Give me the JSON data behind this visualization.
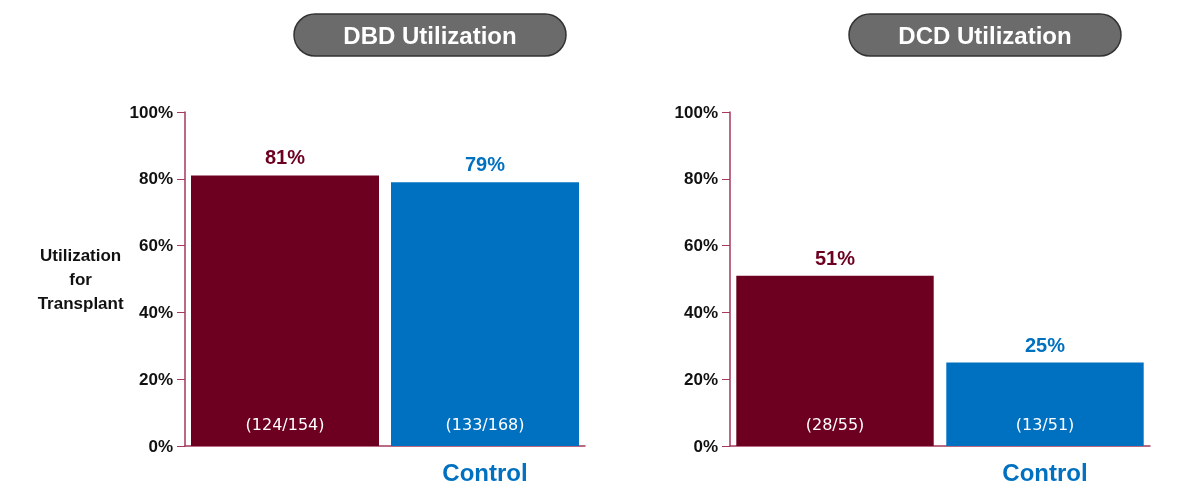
{
  "chart_data": [
    {
      "type": "bar",
      "title": "DBD Utilization",
      "ylabel": "Utilization for Transplant",
      "categories": [
        null,
        "Control"
      ],
      "values": [
        81,
        79
      ],
      "colors": [
        "#6d0020",
        "#0070c0"
      ],
      "value_labels": [
        "81%",
        "79%"
      ],
      "ylim": [
        0,
        100
      ],
      "yticks": [
        {
          "value": 0,
          "label": "0%"
        },
        {
          "value": 20,
          "label": "20%"
        },
        {
          "value": 40,
          "label": "40%"
        },
        {
          "value": 60,
          "label": "60%"
        },
        {
          "value": 80,
          "label": "80%"
        },
        {
          "value": 100,
          "label": "100%"
        }
      ],
      "grid": false,
      "annotations": [
        "(124/154)",
        "(133/168)"
      ]
    },
    {
      "type": "bar",
      "title": "DCD Utilization",
      "categories": [
        null,
        "Control"
      ],
      "values": [
        51,
        25
      ],
      "colors": [
        "#6d0020",
        "#0070c0"
      ],
      "value_labels": [
        "51%",
        "25%"
      ],
      "ylim": [
        0,
        100
      ],
      "yticks": [
        {
          "value": 0,
          "label": "0%"
        },
        {
          "value": 20,
          "label": "20%"
        },
        {
          "value": 40,
          "label": "40%"
        },
        {
          "value": 60,
          "label": "60%"
        },
        {
          "value": 80,
          "label": "80%"
        },
        {
          "value": 100,
          "label": "100%"
        }
      ],
      "grid": false,
      "annotations": [
        "(28/55)",
        "(13/51)"
      ]
    }
  ]
}
